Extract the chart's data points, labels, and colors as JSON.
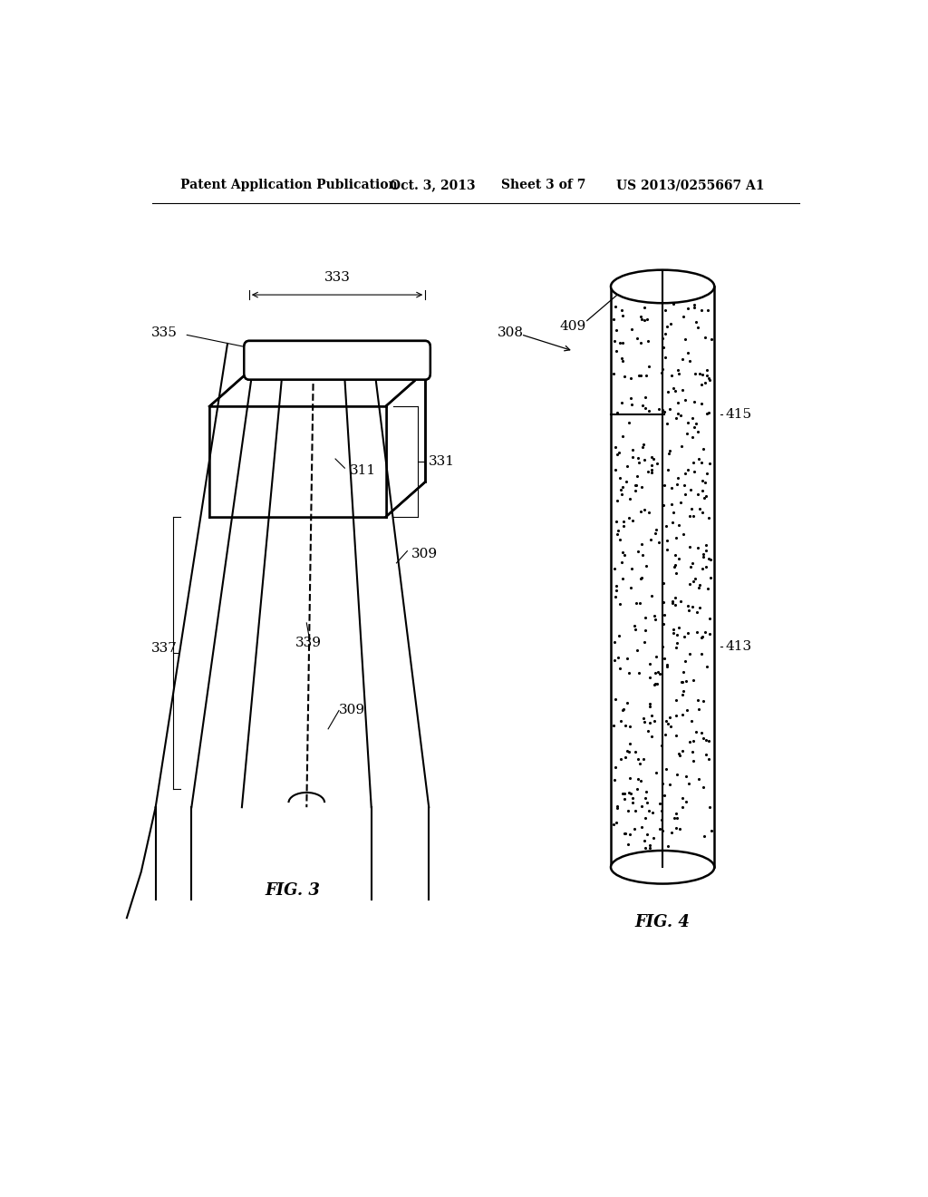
{
  "bg_color": "#ffffff",
  "header_text": "Patent Application Publication",
  "header_date": "Oct. 3, 2013",
  "header_sheet": "Sheet 3 of 7",
  "header_patent": "US 2013/0255667 A1",
  "fig3_label": "FIG. 3",
  "fig4_label": "FIG. 4"
}
